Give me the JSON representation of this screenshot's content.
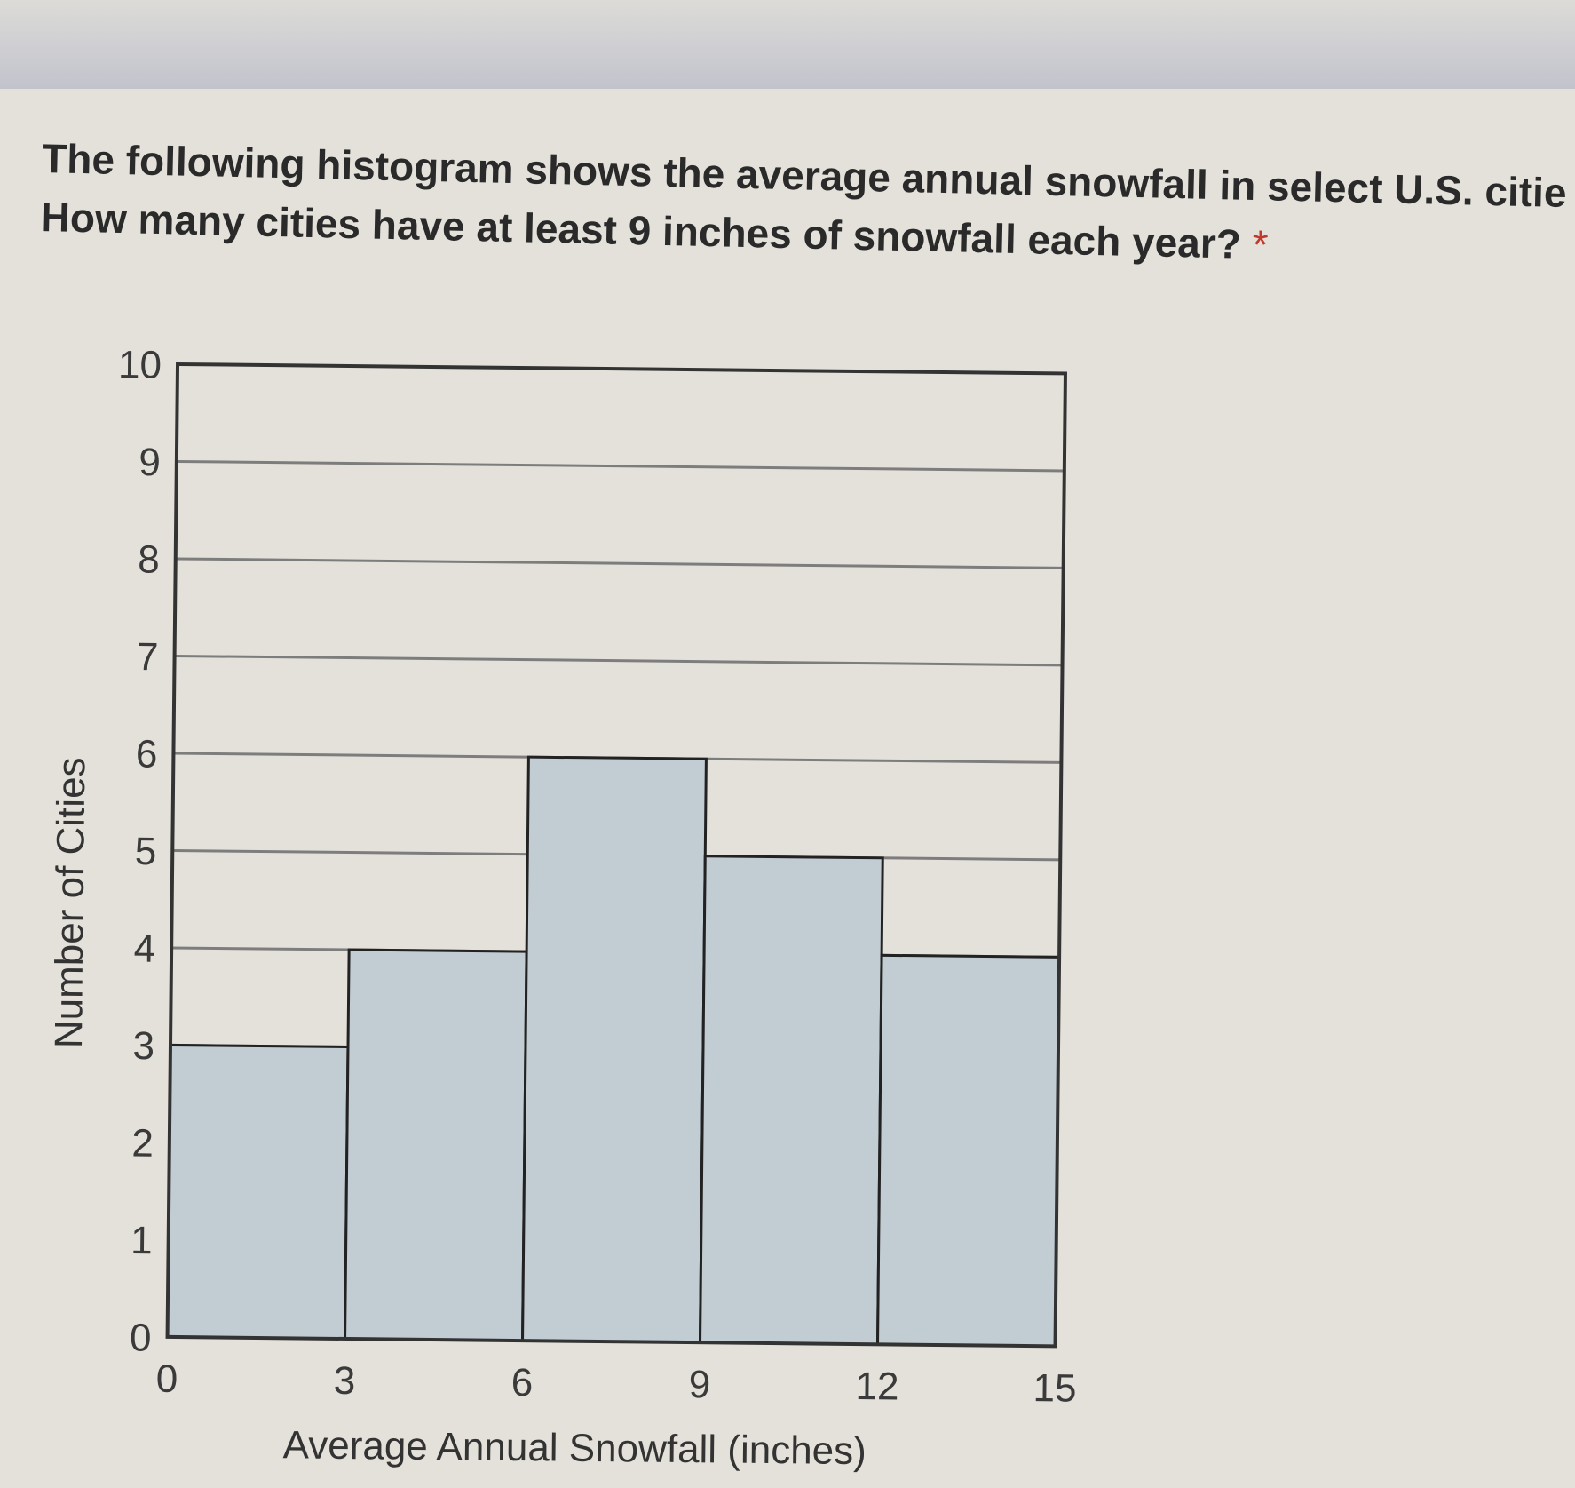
{
  "question": {
    "line1": "The following histogram shows the average annual snowfall in select U.S. citie",
    "line2": "How many cities have at least 9 inches of snowfall each year?",
    "required_marker": "*"
  },
  "colors": {
    "bar_fill": "#c2ccd3",
    "bar_stroke": "#222222",
    "grid": "#7d7d7d",
    "frame": "#333333"
  },
  "chart_data": {
    "type": "bar",
    "histogram": true,
    "title": "",
    "xlabel": "Average Annual Snowfall (inches)",
    "ylabel": "Number of Cities",
    "bins": [
      {
        "range": [
          0,
          3
        ],
        "value": 3
      },
      {
        "range": [
          3,
          6
        ],
        "value": 4
      },
      {
        "range": [
          6,
          9
        ],
        "value": 6
      },
      {
        "range": [
          9,
          12
        ],
        "value": 5
      },
      {
        "range": [
          12,
          15
        ],
        "value": 4
      }
    ],
    "xticks": [
      "0",
      "3",
      "6",
      "9",
      "12",
      "15"
    ],
    "yticks": [
      "0",
      "1",
      "2",
      "3",
      "4",
      "5",
      "6",
      "7",
      "8",
      "9",
      "10"
    ],
    "xlim": [
      0,
      15
    ],
    "ylim": [
      0,
      10
    ],
    "grid": true
  }
}
